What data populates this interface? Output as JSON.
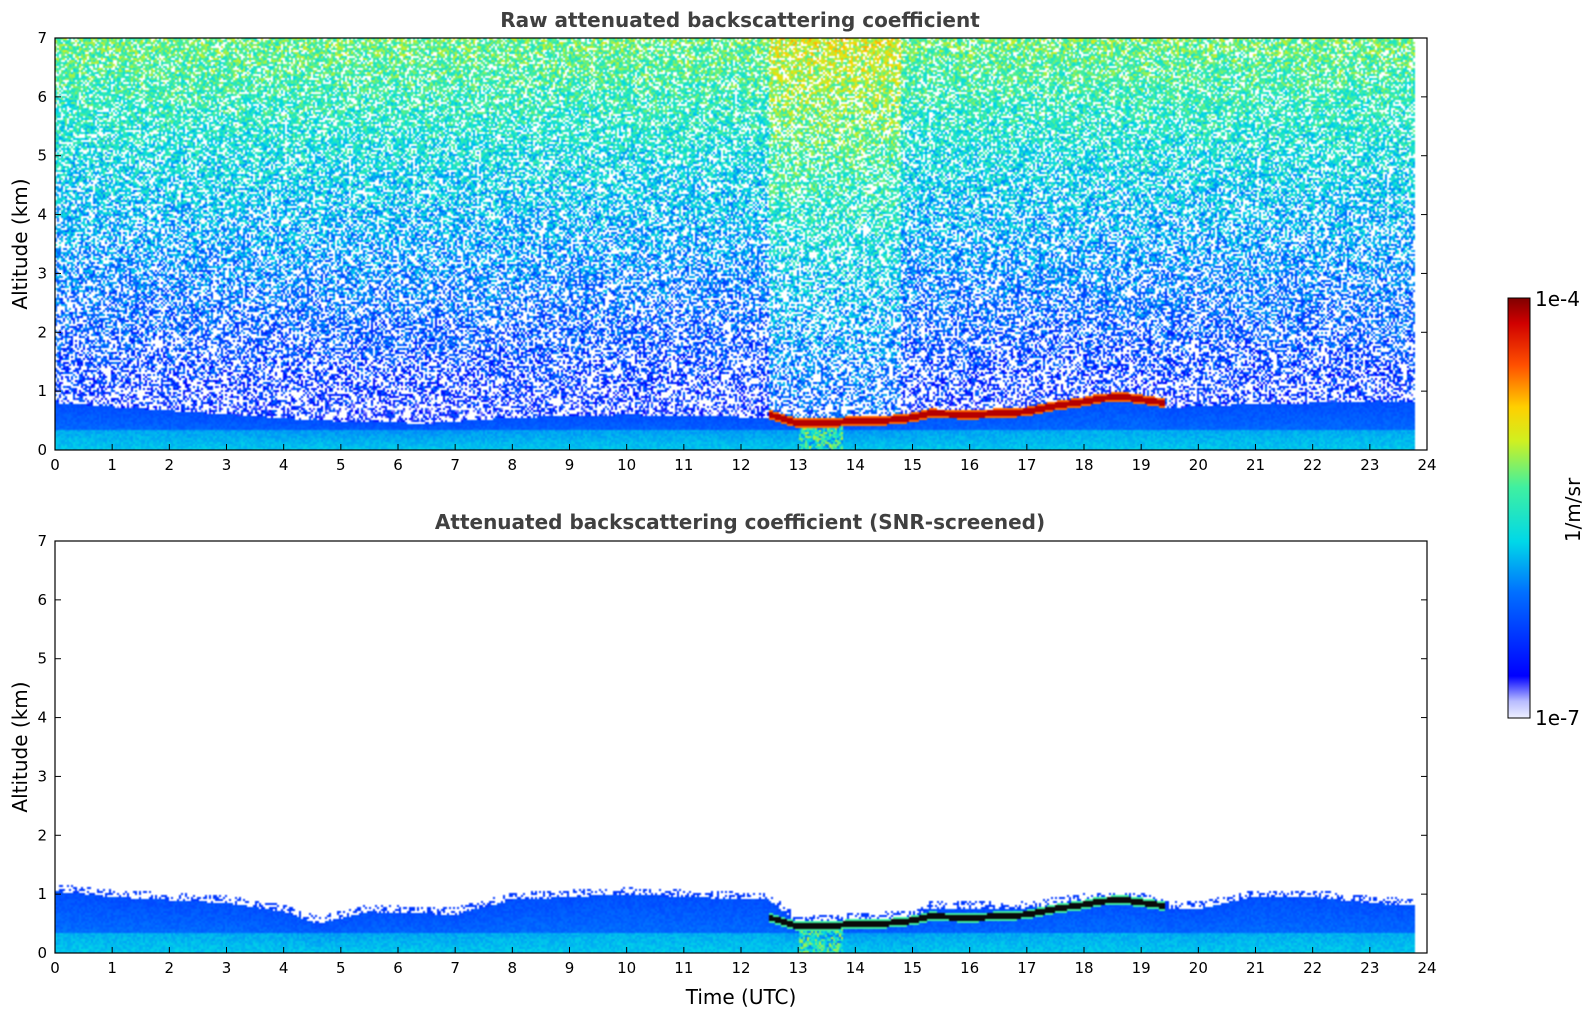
{
  "chart_data": [
    {
      "type": "heatmap",
      "title": "Raw attenuated backscattering coefficient",
      "xlabel": "",
      "ylabel": "Altitude (km)",
      "xlim": [
        0,
        24
      ],
      "ylim": [
        0,
        7
      ],
      "x_ticks": [
        "0",
        "1",
        "2",
        "3",
        "4",
        "5",
        "6",
        "7",
        "8",
        "9",
        "10",
        "11",
        "12",
        "13",
        "14",
        "15",
        "16",
        "17",
        "18",
        "19",
        "20",
        "21",
        "22",
        "23",
        "24"
      ],
      "y_ticks": [
        "0",
        "1",
        "2",
        "3",
        "4",
        "5",
        "6",
        "7"
      ],
      "data_end_time": 23.8,
      "noise": "strong",
      "boundary_layer_top_km": [
        [
          0,
          0.8
        ],
        [
          4.6,
          0.5
        ],
        [
          6.5,
          0.45
        ],
        [
          8,
          0.55
        ],
        [
          10,
          0.6
        ],
        [
          12.5,
          0.55
        ],
        [
          13,
          0.45
        ],
        [
          14,
          0.5
        ],
        [
          15,
          0.55
        ],
        [
          15.3,
          0.65
        ],
        [
          17,
          0.7
        ],
        [
          18,
          0.85
        ],
        [
          19,
          0.9
        ],
        [
          19.5,
          0.7
        ],
        [
          20,
          0.75
        ],
        [
          22,
          0.8
        ],
        [
          23.8,
          0.8
        ]
      ],
      "cloud_layer_km": [
        [
          12.5,
          0.6
        ],
        [
          13,
          0.45
        ],
        [
          13.5,
          0.45
        ],
        [
          14,
          0.5
        ],
        [
          14.5,
          0.5
        ],
        [
          15,
          0.55
        ],
        [
          15.3,
          0.62
        ],
        [
          16,
          0.6
        ],
        [
          16.5,
          0.62
        ],
        [
          17,
          0.65
        ],
        [
          17.5,
          0.75
        ],
        [
          18,
          0.82
        ],
        [
          18.3,
          0.88
        ],
        [
          18.7,
          0.9
        ],
        [
          19.4,
          0.8
        ]
      ]
    },
    {
      "type": "heatmap",
      "title": "Attenuated backscattering coefficient (SNR-screened)",
      "xlabel": "Time (UTC)",
      "ylabel": "Altitude (km)",
      "xlim": [
        0,
        24
      ],
      "ylim": [
        0,
        7
      ],
      "x_ticks": [
        "0",
        "1",
        "2",
        "3",
        "4",
        "5",
        "6",
        "7",
        "8",
        "9",
        "10",
        "11",
        "12",
        "13",
        "14",
        "15",
        "16",
        "17",
        "18",
        "19",
        "20",
        "21",
        "22",
        "23",
        "24"
      ],
      "y_ticks": [
        "0",
        "1",
        "2",
        "3",
        "4",
        "5",
        "6",
        "7"
      ],
      "data_end_time": 23.8,
      "noise": "screened",
      "boundary_layer_top_km": [
        [
          0,
          1.05
        ],
        [
          1,
          0.95
        ],
        [
          2,
          0.9
        ],
        [
          3,
          0.85
        ],
        [
          4,
          0.7
        ],
        [
          4.6,
          0.5
        ],
        [
          5.5,
          0.7
        ],
        [
          7,
          0.65
        ],
        [
          8,
          0.9
        ],
        [
          9,
          0.95
        ],
        [
          10,
          1.0
        ],
        [
          11,
          0.95
        ],
        [
          12.5,
          0.9
        ],
        [
          13,
          0.5
        ],
        [
          14,
          0.55
        ],
        [
          15,
          0.6
        ],
        [
          15.3,
          0.75
        ],
        [
          17,
          0.75
        ],
        [
          18,
          0.9
        ],
        [
          19,
          0.9
        ],
        [
          19.5,
          0.75
        ],
        [
          20,
          0.75
        ],
        [
          21,
          0.95
        ],
        [
          22,
          0.95
        ],
        [
          23,
          0.85
        ],
        [
          23.8,
          0.8
        ]
      ],
      "cloud_layer_km": [
        [
          12.5,
          0.6
        ],
        [
          13,
          0.45
        ],
        [
          13.5,
          0.45
        ],
        [
          14,
          0.5
        ],
        [
          14.5,
          0.5
        ],
        [
          15,
          0.55
        ],
        [
          15.3,
          0.62
        ],
        [
          16,
          0.6
        ],
        [
          16.5,
          0.62
        ],
        [
          17,
          0.65
        ],
        [
          17.5,
          0.75
        ],
        [
          18,
          0.82
        ],
        [
          18.3,
          0.88
        ],
        [
          18.7,
          0.9
        ],
        [
          19.4,
          0.8
        ]
      ]
    }
  ],
  "colorbar": {
    "label": "1/m/sr",
    "max_label": "1e-4",
    "min_label": "1e-7",
    "colormap": "jet"
  }
}
